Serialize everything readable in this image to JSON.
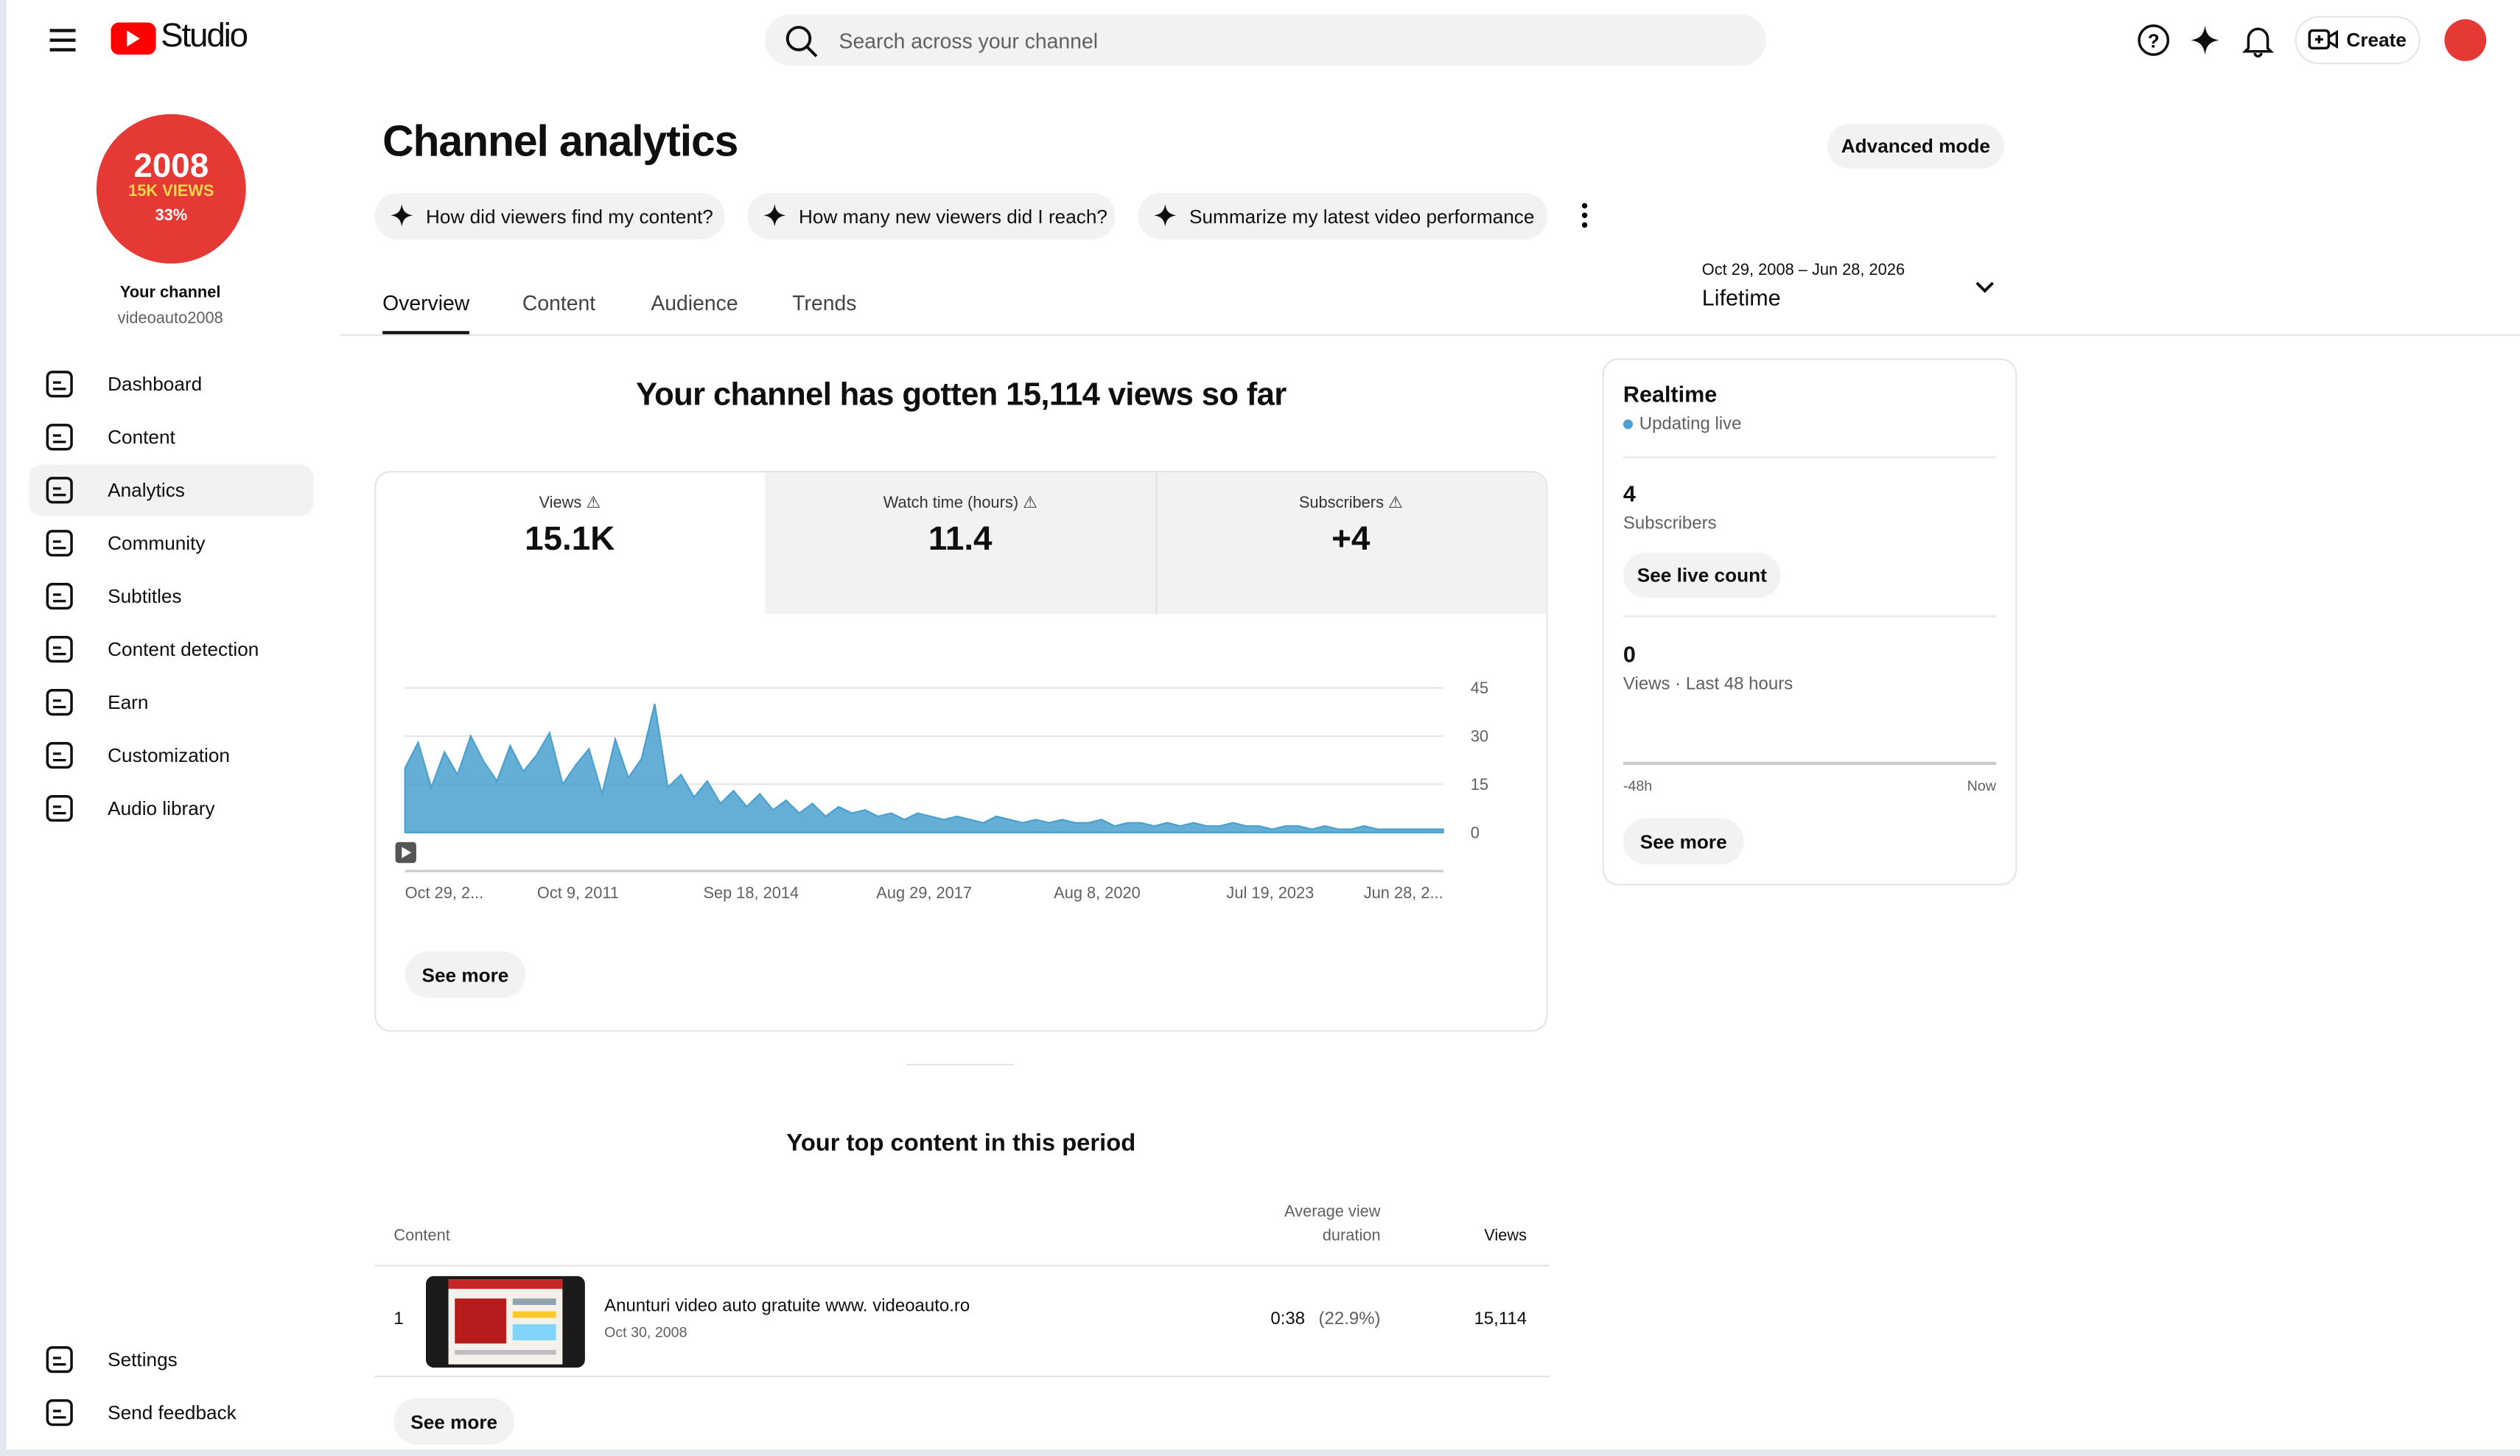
{
  "header": {
    "logo": "Studio",
    "search_placeholder": "Search across your channel",
    "create": "Create"
  },
  "sidebar": {
    "avatar_year": "2008",
    "avatar_views": "15K VIEWS",
    "avatar_percent": "33%",
    "channel_title": "Your channel",
    "channel_handle": "videoauto2008",
    "nav": [
      "Dashboard",
      "Content",
      "Analytics",
      "Community",
      "Subtitles",
      "Content detection",
      "Earn",
      "Customization",
      "Audio library"
    ],
    "bottom_nav": [
      "Settings",
      "Send feedback"
    ]
  },
  "page": {
    "title": "Channel analytics",
    "advanced_mode": "Advanced mode",
    "prompts": [
      "How did viewers find my content?",
      "How many new viewers did I reach?",
      "Summarize my latest video performance"
    ],
    "tabs": [
      "Overview",
      "Content",
      "Audience",
      "Trends"
    ],
    "date_range": "Oct 29, 2008 – Jun 28, 2026",
    "period": "Lifetime"
  },
  "overview": {
    "headline": "Your channel has gotten 15,114 views so far",
    "metrics": [
      {
        "label": "Views",
        "value": "15.1K"
      },
      {
        "label": "Watch time (hours)",
        "value": "11.4"
      },
      {
        "label": "Subscribers",
        "value": "+4"
      }
    ],
    "see_more": "See more"
  },
  "chart_data": {
    "type": "area",
    "color": "#4aa0cf",
    "ylim": [
      0,
      45
    ],
    "yticks": [
      0,
      15,
      30,
      45
    ],
    "x_labels": [
      "Oct 29, 2...",
      "Oct 9, 2011",
      "Sep 18, 2014",
      "Aug 29, 2017",
      "Aug 8, 2020",
      "Jul 19, 2023",
      "Jun 28, 2..."
    ],
    "values": [
      20,
      28,
      14,
      25,
      18,
      30,
      22,
      16,
      27,
      19,
      24,
      31,
      15,
      21,
      26,
      12,
      29,
      17,
      23,
      40,
      14,
      18,
      11,
      16,
      9,
      13,
      8,
      12,
      7,
      10,
      6,
      9,
      5,
      8,
      6,
      7,
      5,
      6,
      4,
      6,
      5,
      4,
      5,
      4,
      3,
      5,
      4,
      3,
      4,
      3,
      4,
      3,
      3,
      4,
      2,
      3,
      3,
      2,
      3,
      2,
      3,
      2,
      2,
      3,
      2,
      2,
      1,
      2,
      2,
      1,
      2,
      1,
      1,
      2,
      1,
      1,
      1,
      1,
      1,
      1
    ]
  },
  "realtime": {
    "title": "Realtime",
    "status": "Updating live",
    "subscribers": "4",
    "subscribers_label": "Subscribers",
    "live_count": "See live count",
    "views": "0",
    "views_label": "Views · Last 48 hours",
    "axis_start": "-48h",
    "axis_end": "Now",
    "see_more": "See more"
  },
  "top_content": {
    "title": "Your top content in this period",
    "col_content": "Content",
    "col_duration_1": "Average view",
    "col_duration_2": "duration",
    "col_views": "Views",
    "rows": [
      {
        "rank": "1",
        "title": "Anunturi video auto gratuite www. videoauto.ro",
        "date": "Oct 30, 2008",
        "duration": "0:38",
        "percent": "(22.9%)",
        "views": "15,114"
      }
    ],
    "see_more": "See more"
  }
}
